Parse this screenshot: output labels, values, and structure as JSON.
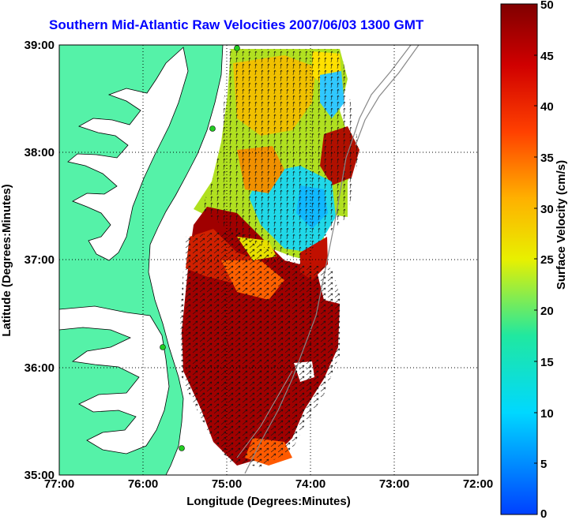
{
  "title": "Southern Mid-Atlantic Raw Velocities 2007/06/03 1300 GMT",
  "x_axis": {
    "label": "Longitude (Degrees:Minutes)",
    "ticks": [
      "77:00",
      "76:00",
      "75:00",
      "74:00",
      "73:00",
      "72:00"
    ]
  },
  "y_axis": {
    "label": "Latitude (Degrees:Minutes)",
    "ticks": [
      "39:00",
      "38:00",
      "37:00",
      "36:00",
      "35:00"
    ]
  },
  "colorbar": {
    "label": "Surface Velocity (cm/s)",
    "ticks": [
      "50",
      "45",
      "40",
      "35",
      "30",
      "25",
      "20",
      "15",
      "10",
      "5",
      "0"
    ],
    "min": 0,
    "max": 50
  },
  "colors": {
    "title": "#0000ff",
    "land": "#55f2a8",
    "coastline": "#000000",
    "stations": "#22cc22"
  },
  "map_extent": {
    "lon_range": [
      -77,
      -72
    ],
    "lat_range": [
      35,
      39
    ]
  }
}
